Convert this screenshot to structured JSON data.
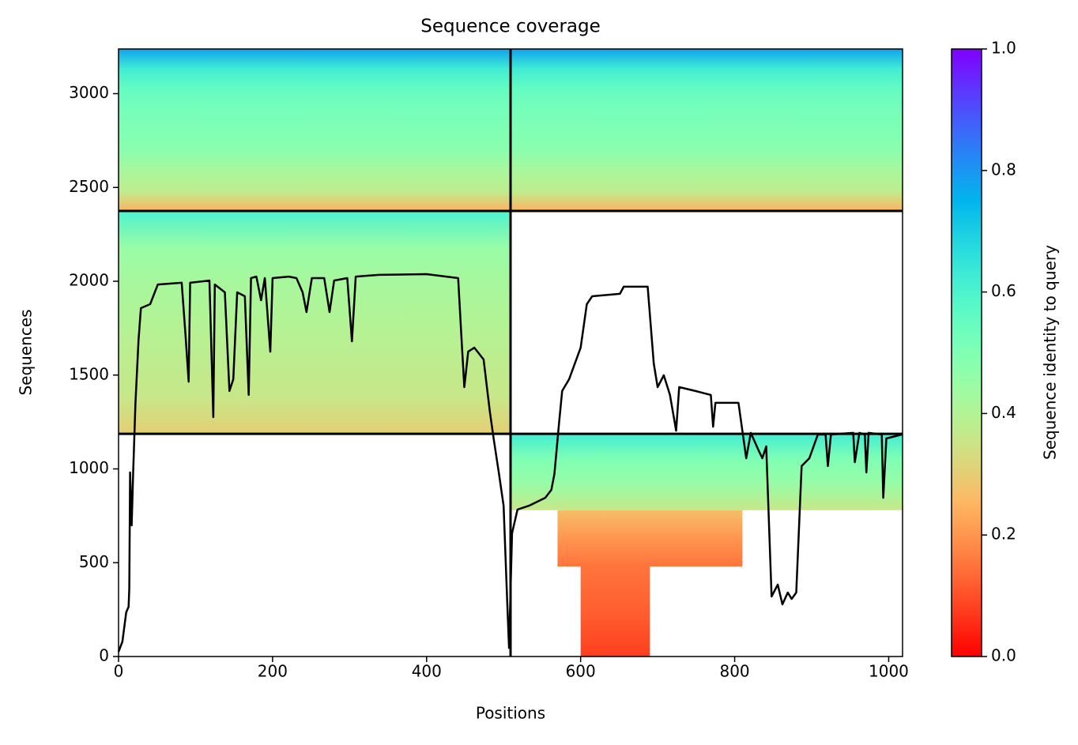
{
  "chart_data": {
    "type": "coverage",
    "title": "Sequence coverage",
    "x_label": "Positions",
    "y_label": "Sequences",
    "xlim": [
      0,
      1018
    ],
    "xticks": [
      0,
      200,
      400,
      600,
      800,
      1000
    ],
    "ylim": [
      0,
      3238
    ],
    "yticks": [
      0,
      500,
      1000,
      1500,
      2000,
      2500,
      3000
    ],
    "blocks": [
      {
        "x": [
          0,
          509
        ],
        "y": [
          2375,
          3238
        ],
        "identity": [
          0.25,
          0.38,
          0.42,
          0.48,
          0.5,
          0.52,
          0.55,
          0.62,
          0.78
        ]
      },
      {
        "x": [
          509,
          1018
        ],
        "y": [
          2375,
          3238
        ],
        "identity": [
          0.25,
          0.38,
          0.42,
          0.48,
          0.5,
          0.52,
          0.55,
          0.62,
          0.78
        ]
      },
      {
        "x": [
          0,
          509
        ],
        "y": [
          1187,
          2375
        ],
        "identity": [
          0.3,
          0.36,
          0.38,
          0.4,
          0.42,
          0.45,
          0.6
        ]
      },
      {
        "x": [
          509,
          1018
        ],
        "y": [
          780,
          1187
        ],
        "identity": [
          0.36,
          0.45,
          0.5,
          0.62
        ]
      },
      {
        "x": [
          570,
          810
        ],
        "y": [
          480,
          780
        ],
        "identity": [
          0.15,
          0.2,
          0.27
        ]
      },
      {
        "x": [
          600,
          690
        ],
        "y": [
          0,
          480
        ],
        "identity": [
          0.08,
          0.12,
          0.15
        ]
      }
    ],
    "boundaries_x": [
      509
    ],
    "boundaries_y": [
      1187,
      2375
    ],
    "coverage": {
      "color": "#000000",
      "x": [
        0,
        5,
        10,
        13,
        14,
        15,
        17,
        19,
        22,
        26,
        29,
        41,
        51,
        82,
        87,
        91,
        93,
        118,
        123,
        125,
        138,
        144,
        149,
        154,
        164,
        169,
        172,
        179,
        185,
        190,
        197,
        200,
        221,
        231,
        239,
        244,
        251,
        267,
        274,
        280,
        297,
        303,
        308,
        338,
        400,
        441,
        446,
        449,
        454,
        462,
        474,
        482,
        487,
        494,
        500,
        505,
        507,
        511,
        518,
        533,
        554,
        562,
        566,
        572,
        576,
        585,
        600,
        608,
        615,
        651,
        656,
        687,
        695,
        700,
        708,
        716,
        724,
        728,
        749,
        769,
        772,
        775,
        795,
        805,
        810,
        815,
        821,
        831,
        836,
        841,
        848,
        856,
        862,
        869,
        874,
        880,
        887,
        897,
        908,
        918,
        921,
        925,
        954,
        956,
        962,
        969,
        971,
        974,
        991,
        993,
        997,
        1017
      ],
      "values": [
        25,
        80,
        236,
        265,
        362,
        981,
        699,
        981,
        1352,
        1688,
        1857,
        1878,
        1983,
        1992,
        1709,
        1465,
        1992,
        2004,
        1276,
        1983,
        1941,
        1415,
        1478,
        1941,
        1920,
        1394,
        2017,
        2025,
        1899,
        2017,
        1625,
        2017,
        2025,
        2017,
        1941,
        1836,
        2017,
        2017,
        1836,
        2004,
        2017,
        1680,
        2025,
        2034,
        2038,
        2017,
        1646,
        1436,
        1625,
        1646,
        1583,
        1309,
        1162,
        973,
        804,
        257,
        46,
        657,
        783,
        804,
        846,
        888,
        973,
        1246,
        1415,
        1478,
        1646,
        1878,
        1920,
        1933,
        1971,
        1971,
        1562,
        1436,
        1499,
        1394,
        1204,
        1436,
        1415,
        1394,
        1225,
        1352,
        1352,
        1352,
        1204,
        1057,
        1192,
        1099,
        1057,
        1120,
        320,
        383,
        278,
        341,
        307,
        341,
        1015,
        1057,
        1183,
        1183,
        1015,
        1183,
        1192,
        1036,
        1192,
        1183,
        981,
        1192,
        1183,
        846,
        1162,
        1183
      ]
    },
    "colorbar_label": "Sequence identity to query",
    "clim": [
      0,
      1
    ],
    "colorbar_ticks": [
      {
        "value": 0,
        "label": "0.0"
      },
      {
        "value": 0.2,
        "label": "0.2"
      },
      {
        "value": 0.4,
        "label": "0.4"
      },
      {
        "value": 0.6,
        "label": "0.6"
      },
      {
        "value": 0.8,
        "label": "0.8"
      },
      {
        "value": 1,
        "label": "1.0"
      }
    ]
  }
}
